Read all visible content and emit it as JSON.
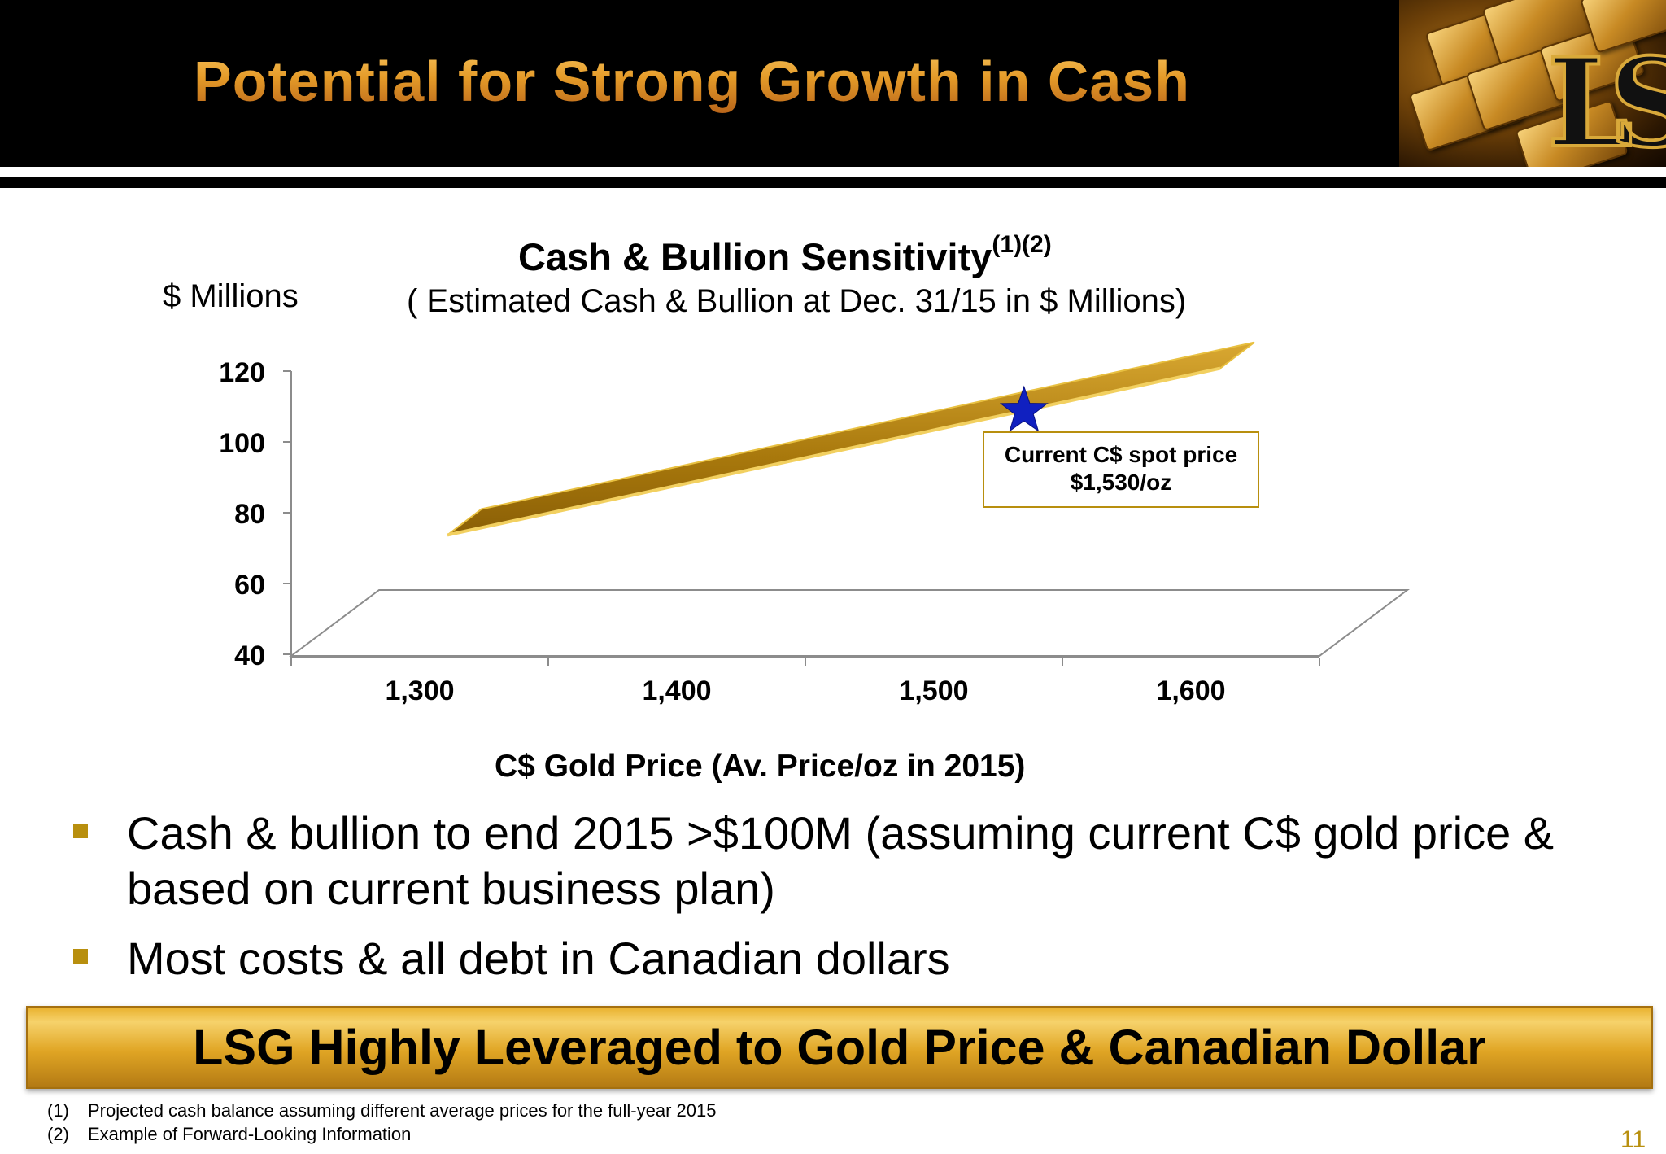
{
  "slide": {
    "title": "Potential for Strong Growth in Cash",
    "bullets": [
      "Cash & bullion to end 2015 >$100M (assuming current C$ gold price & based on current business plan)",
      "Most costs & all debt in Canadian dollars"
    ],
    "banner": "LSG Highly Leveraged to Gold Price & Canadian Dollar",
    "footnotes": [
      {
        "num": "(1)",
        "text": "Projected cash balance assuming different average prices for the full-year 2015"
      },
      {
        "num": "(2)",
        "text": "Example of Forward-Looking Information"
      }
    ],
    "page_number": "11",
    "logo_text": "LS",
    "colors": {
      "accent_gold": "#b88f0e",
      "line_gold": "#b8860b",
      "star_blue": "#1020c0"
    }
  },
  "chart_data": {
    "type": "line",
    "title": "Cash & Bullion Sensitivity",
    "title_superscript": "(1)(2)",
    "subtitle": "( Estimated Cash & Bullion at Dec. 31/15 in $ Millions)",
    "ylabel": "$ Millions",
    "xlabel": "C$ Gold Price (Av. Price/oz in 2015)",
    "categories": [
      "1,300",
      "1,400",
      "1,500",
      "1,600"
    ],
    "x": [
      1300,
      1400,
      1500,
      1600
    ],
    "series": [
      {
        "values": [
          72,
          88,
          103,
          119
        ]
      }
    ],
    "ylim": [
      40,
      120
    ],
    "yticks": [
      "40",
      "60",
      "80",
      "100",
      "120"
    ],
    "marker": {
      "x": 1530,
      "y": 108
    },
    "annotation": {
      "line1": "Current C$ spot price",
      "line2": "$1,530/oz"
    },
    "grid": false,
    "three_d": true
  }
}
